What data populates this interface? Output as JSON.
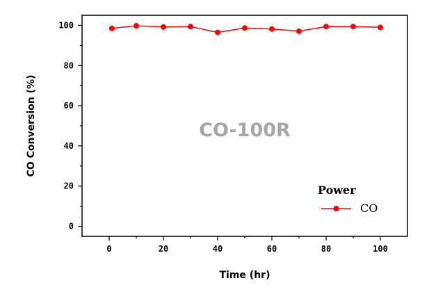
{
  "chart_data": {
    "type": "line",
    "xlabel": "Time (hr)",
    "ylabel": "CO Conversion (%)",
    "xlim": [
      -10,
      110
    ],
    "ylim": [
      -5,
      105
    ],
    "xticks": [
      0,
      20,
      40,
      60,
      80,
      100
    ],
    "yticks": [
      0,
      20,
      40,
      60,
      80,
      100
    ],
    "annotation": "CO-100R",
    "legend": {
      "title": "Power",
      "placement": "bottom-right"
    },
    "series": [
      {
        "name": "CO",
        "color": "#ff0000",
        "marker": "filled-circle",
        "x": [
          1,
          10,
          20,
          30,
          40,
          50,
          60,
          70,
          80,
          90,
          100
        ],
        "y": [
          98.5,
          99.8,
          99.2,
          99.4,
          96.5,
          98.7,
          98.2,
          97.1,
          99.4,
          99.4,
          99.0
        ]
      }
    ]
  }
}
